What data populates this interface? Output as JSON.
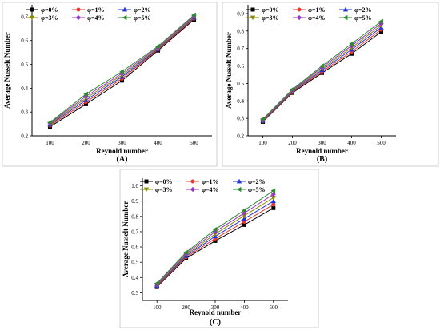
{
  "chart_data": [
    {
      "type": "line",
      "panel_label": "(A)",
      "xlabel": "Reynold number",
      "ylabel": "Average Nusselt Number",
      "x": [
        100,
        200,
        300,
        400,
        500
      ],
      "xlim": [
        50,
        550
      ],
      "ylim": [
        0.2,
        0.75
      ],
      "yticks": [
        0.2,
        0.3,
        0.4,
        0.5,
        0.6,
        0.7
      ],
      "legend_placement": "top-left",
      "series": [
        {
          "name": "φ=0%",
          "color": "#000000",
          "marker": "square",
          "values": [
            0.238,
            0.333,
            0.432,
            0.558,
            0.688
          ]
        },
        {
          "name": "φ=1%",
          "color": "#e8392a",
          "marker": "circle",
          "values": [
            0.243,
            0.342,
            0.44,
            0.562,
            0.692
          ]
        },
        {
          "name": "φ=2%",
          "color": "#2233dd",
          "marker": "triangle-up",
          "values": [
            0.247,
            0.35,
            0.448,
            0.565,
            0.696
          ]
        },
        {
          "name": "φ=3%",
          "color": "#8a8a00",
          "marker": "triangle-down",
          "values": [
            0.25,
            0.358,
            0.455,
            0.568,
            0.699
          ]
        },
        {
          "name": "φ=4%",
          "color": "#9933cc",
          "marker": "diamond",
          "values": [
            0.253,
            0.366,
            0.462,
            0.572,
            0.703
          ]
        },
        {
          "name": "φ=5%",
          "color": "#2e8b2e",
          "marker": "triangle-left",
          "values": [
            0.256,
            0.375,
            0.47,
            0.576,
            0.707
          ]
        }
      ]
    },
    {
      "type": "line",
      "panel_label": "(B)",
      "xlabel": "Reynold number",
      "ylabel": "Average Nusselt Number",
      "x": [
        100,
        200,
        300,
        400,
        500
      ],
      "xlim": [
        50,
        550
      ],
      "ylim": [
        0.2,
        0.95
      ],
      "yticks": [
        0.2,
        0.3,
        0.4,
        0.5,
        0.6,
        0.7,
        0.8,
        0.9
      ],
      "legend_placement": "top-left",
      "series": [
        {
          "name": "φ=0%",
          "color": "#000000",
          "marker": "square",
          "values": [
            0.28,
            0.446,
            0.56,
            0.67,
            0.795
          ]
        },
        {
          "name": "φ=1%",
          "color": "#e8392a",
          "marker": "circle",
          "values": [
            0.283,
            0.45,
            0.568,
            0.682,
            0.808
          ]
        },
        {
          "name": "φ=2%",
          "color": "#2233dd",
          "marker": "triangle-up",
          "values": [
            0.286,
            0.454,
            0.576,
            0.694,
            0.82
          ]
        },
        {
          "name": "φ=3%",
          "color": "#8a8a00",
          "marker": "triangle-down",
          "values": [
            0.289,
            0.458,
            0.584,
            0.705,
            0.832
          ]
        },
        {
          "name": "φ=4%",
          "color": "#9933cc",
          "marker": "diamond",
          "values": [
            0.292,
            0.462,
            0.592,
            0.716,
            0.843
          ]
        },
        {
          "name": "φ=5%",
          "color": "#2e8b2e",
          "marker": "triangle-left",
          "values": [
            0.295,
            0.466,
            0.6,
            0.727,
            0.855
          ]
        }
      ]
    },
    {
      "type": "line",
      "panel_label": "(C)",
      "xlabel": "Reynold number",
      "ylabel": "Average Nusselt Number",
      "x": [
        100,
        200,
        300,
        400,
        500
      ],
      "xlim": [
        50,
        550
      ],
      "ylim": [
        0.25,
        1.05
      ],
      "yticks": [
        0.3,
        0.4,
        0.5,
        0.6,
        0.7,
        0.8,
        0.9,
        1.0
      ],
      "legend_placement": "top-left",
      "series": [
        {
          "name": "φ=0%",
          "color": "#000000",
          "marker": "square",
          "values": [
            0.338,
            0.525,
            0.64,
            0.745,
            0.855
          ]
        },
        {
          "name": "φ=1%",
          "color": "#e8392a",
          "marker": "circle",
          "values": [
            0.342,
            0.533,
            0.655,
            0.765,
            0.878
          ]
        },
        {
          "name": "φ=2%",
          "color": "#2233dd",
          "marker": "triangle-up",
          "values": [
            0.347,
            0.541,
            0.67,
            0.785,
            0.9
          ]
        },
        {
          "name": "φ=3%",
          "color": "#8a8a00",
          "marker": "triangle-down",
          "values": [
            0.352,
            0.549,
            0.685,
            0.805,
            0.922
          ]
        },
        {
          "name": "φ=4%",
          "color": "#9933cc",
          "marker": "diamond",
          "values": [
            0.357,
            0.557,
            0.7,
            0.822,
            0.945
          ]
        },
        {
          "name": "φ=5%",
          "color": "#2e8b2e",
          "marker": "triangle-left",
          "values": [
            0.362,
            0.565,
            0.715,
            0.84,
            0.968
          ]
        }
      ]
    }
  ]
}
